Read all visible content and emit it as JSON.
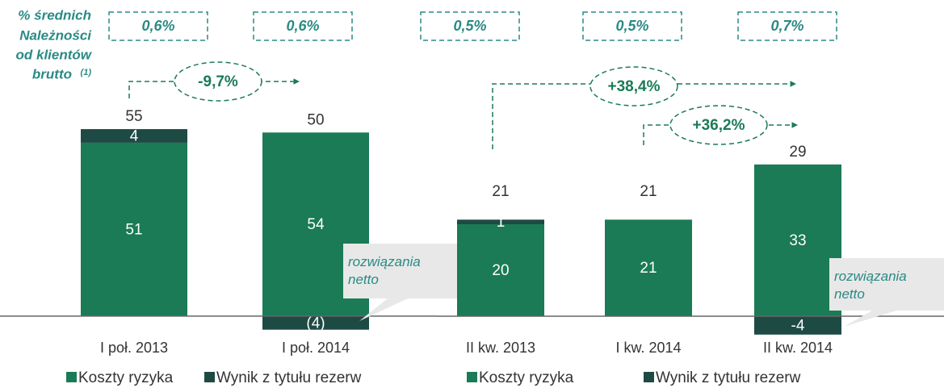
{
  "note": {
    "lines": [
      "% średnich",
      "Należności",
      "od klientów",
      "brutto"
    ],
    "footnote": "(1)"
  },
  "chart_data": [
    {
      "type": "bar",
      "stacked": true,
      "categories": [
        "I poł. 2013",
        "I poł. 2014"
      ],
      "series": [
        {
          "name": "Koszty ryzyka",
          "color": "#1a7b56",
          "values": [
            51,
            54
          ]
        },
        {
          "name": "Wynik z tytułu rezerw",
          "color": "#1e4a44",
          "values": [
            4,
            -4
          ],
          "value_labels": [
            "4",
            "(4)"
          ]
        }
      ],
      "totals": [
        55,
        50
      ],
      "percentages": [
        "0,6%",
        "0,6%"
      ],
      "annotations": [
        "-9,7%"
      ],
      "callout": "rozwiązania netto",
      "ylim": [
        -10,
        60
      ]
    },
    {
      "type": "bar",
      "stacked": true,
      "categories": [
        "II kw. 2013",
        "I kw. 2014",
        "II kw. 2014"
      ],
      "series": [
        {
          "name": "Koszty ryzyka",
          "color": "#1a7b56",
          "values": [
            20,
            21,
            33
          ]
        },
        {
          "name": "Wynik z tytułu rezerw",
          "color": "#1e4a44",
          "values": [
            1,
            0,
            -4
          ]
        }
      ],
      "totals": [
        21,
        21,
        29
      ],
      "percentages": [
        "0,5%",
        "0,5%",
        "0,7%"
      ],
      "annotations": [
        "+38,4%",
        "+36,2%"
      ],
      "callout": "rozwiązania netto",
      "ylim": [
        -5,
        35
      ]
    }
  ]
}
